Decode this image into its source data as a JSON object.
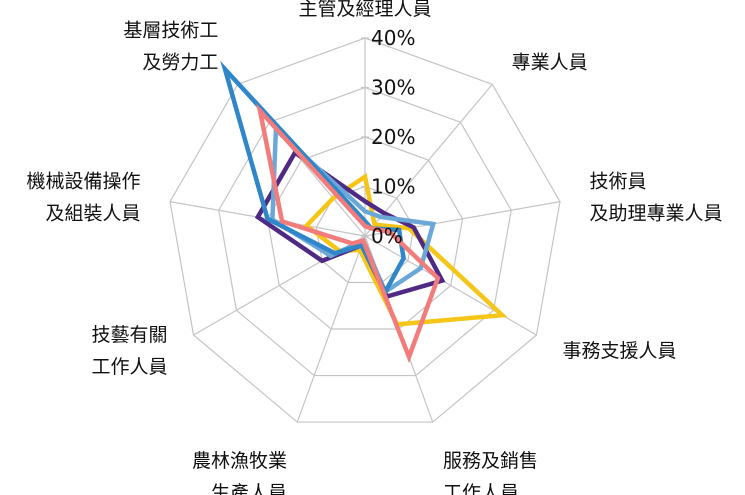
{
  "chart_data": {
    "type": "radar",
    "title": "",
    "categories": [
      [
        "主管及經理人員"
      ],
      [
        "專業人員"
      ],
      [
        "技術員",
        "及助理專業人員"
      ],
      [
        "事務支援人員"
      ],
      [
        "服務及銷售",
        "工作人員"
      ],
      [
        "農林漁牧業",
        "生產人員"
      ],
      [
        "技藝有關",
        "工作人員"
      ],
      [
        "機械設備操作",
        "及組裝人員"
      ],
      [
        "基層技術工",
        "及勞力工"
      ]
    ],
    "ticks": [
      "0%",
      "10%",
      "20%",
      "30%",
      "40%"
    ],
    "rmax": 40,
    "grid": true,
    "series": [
      {
        "color": "#F5C518",
        "values": [
          12,
          3,
          9,
          32,
          19,
          3,
          6,
          12,
          10
        ]
      },
      {
        "color": "#4E2A84",
        "values": [
          7,
          6,
          10,
          18,
          13,
          2,
          10,
          22,
          22
        ]
      },
      {
        "color": "#6BA8D8",
        "values": [
          5,
          5,
          14,
          13,
          12,
          1,
          8,
          19,
          28
        ]
      },
      {
        "color": "#2F86C8",
        "values": [
          3,
          2,
          7,
          9,
          12,
          2,
          7,
          20,
          44
        ]
      },
      {
        "color": "#F27B7B",
        "values": [
          2,
          2,
          5,
          17,
          26,
          1,
          3,
          17,
          33
        ]
      }
    ]
  }
}
